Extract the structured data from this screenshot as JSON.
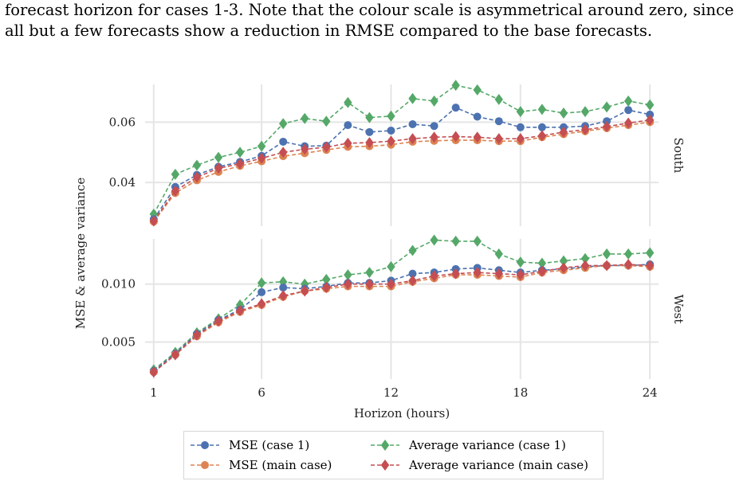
{
  "caption": {
    "line1": "forecast horizon for cases 1-3. Note that the colour scale is asymmetrical around zero, since",
    "line2": "all but a few forecasts show a reduction in RMSE compared to the base forecasts."
  },
  "chart_data": {
    "type": "line",
    "xlabel": "Horizon (hours)",
    "ylabel": "MSE & average variance",
    "x": [
      1,
      2,
      3,
      4,
      5,
      6,
      7,
      8,
      9,
      10,
      11,
      12,
      13,
      14,
      15,
      16,
      17,
      18,
      19,
      20,
      21,
      22,
      23,
      24
    ],
    "x_ticks": [
      "1",
      "6",
      "12",
      "18",
      "24"
    ],
    "xlim": [
      0.6,
      24.4
    ],
    "grid": true,
    "legend_position": "bottom",
    "series_styles": [
      {
        "name": "MSE (case 1)",
        "color": "#4c72b0",
        "marker": "circle"
      },
      {
        "name": "MSE (main case)",
        "color": "#dd8452",
        "marker": "circle"
      },
      {
        "name": "Average variance (case 1)",
        "color": "#55a868",
        "marker": "diamond"
      },
      {
        "name": "Average variance (main case)",
        "color": "#c44e52",
        "marker": "diamond"
      }
    ],
    "panels": [
      {
        "strip": "South",
        "ylim": [
          0.0255,
          0.0725
        ],
        "y_ticks": [
          "0.04",
          "0.06"
        ],
        "y_tick_values": [
          0.04,
          0.06
        ],
        "series": [
          {
            "name": "MSE (case 1)",
            "values": [
              0.0278,
              0.0385,
              0.0425,
              0.0452,
              0.0468,
              0.0488,
              0.0535,
              0.052,
              0.0522,
              0.059,
              0.0567,
              0.0572,
              0.0593,
              0.0587,
              0.0648,
              0.0618,
              0.0603,
              0.0583,
              0.0583,
              0.0583,
              0.0587,
              0.0603,
              0.064,
              0.0625
            ]
          },
          {
            "name": "MSE (main case)",
            "values": [
              0.027,
              0.0365,
              0.0407,
              0.0435,
              0.0455,
              0.047,
              0.0487,
              0.0497,
              0.0508,
              0.0518,
              0.052,
              0.0525,
              0.0535,
              0.0538,
              0.054,
              0.054,
              0.0537,
              0.0537,
              0.055,
              0.056,
              0.057,
              0.058,
              0.059,
              0.06
            ]
          },
          {
            "name": "Average variance (case 1)",
            "values": [
              0.0295,
              0.0427,
              0.0457,
              0.0483,
              0.05,
              0.052,
              0.0595,
              0.0612,
              0.0603,
              0.0665,
              0.0615,
              0.062,
              0.0678,
              0.067,
              0.0722,
              0.0707,
              0.0675,
              0.0635,
              0.0642,
              0.063,
              0.0635,
              0.065,
              0.067,
              0.0657
            ]
          },
          {
            "name": "Average variance (main case)",
            "values": [
              0.0272,
              0.0372,
              0.0417,
              0.0447,
              0.0462,
              0.048,
              0.05,
              0.051,
              0.0517,
              0.053,
              0.0532,
              0.0537,
              0.0545,
              0.055,
              0.0552,
              0.055,
              0.0545,
              0.0545,
              0.0555,
              0.0567,
              0.0575,
              0.0585,
              0.0597,
              0.0607
            ]
          }
        ]
      },
      {
        "strip": "West",
        "ylim": [
          0.0018,
          0.0139
        ],
        "y_ticks": [
          "0.005",
          "0.010"
        ],
        "y_tick_values": [
          0.005,
          0.01
        ],
        "series": [
          {
            "name": "MSE (case 1)",
            "values": [
              0.0025,
              0.004,
              0.0057,
              0.0069,
              0.0078,
              0.0093,
              0.0097,
              0.0096,
              0.0098,
              0.0101,
              0.0101,
              0.0103,
              0.0109,
              0.011,
              0.0113,
              0.0114,
              0.0112,
              0.011,
              0.0112,
              0.0113,
              0.0115,
              0.0116,
              0.0116,
              0.0117
            ]
          },
          {
            "name": "MSE (main case)",
            "values": [
              0.0024,
              0.0039,
              0.0055,
              0.0067,
              0.0076,
              0.0082,
              0.0089,
              0.0094,
              0.0096,
              0.0098,
              0.0098,
              0.0098,
              0.0102,
              0.0105,
              0.0108,
              0.0108,
              0.0107,
              0.0106,
              0.011,
              0.0112,
              0.0114,
              0.0116,
              0.0116,
              0.0115
            ]
          },
          {
            "name": "Average variance (case 1)",
            "values": [
              0.0026,
              0.0041,
              0.0058,
              0.007,
              0.0082,
              0.0101,
              0.0102,
              0.01,
              0.0104,
              0.0108,
              0.011,
              0.0115,
              0.0129,
              0.0138,
              0.0137,
              0.0137,
              0.0126,
              0.0119,
              0.0118,
              0.012,
              0.0122,
              0.0126,
              0.0126,
              0.0127
            ]
          },
          {
            "name": "Average variance (main case)",
            "values": [
              0.0024,
              0.0039,
              0.0056,
              0.0068,
              0.0077,
              0.0083,
              0.009,
              0.0094,
              0.0097,
              0.01,
              0.01,
              0.01,
              0.0103,
              0.0107,
              0.0109,
              0.011,
              0.0109,
              0.0108,
              0.0111,
              0.0114,
              0.0116,
              0.0116,
              0.0117,
              0.0116
            ]
          }
        ]
      }
    ]
  }
}
